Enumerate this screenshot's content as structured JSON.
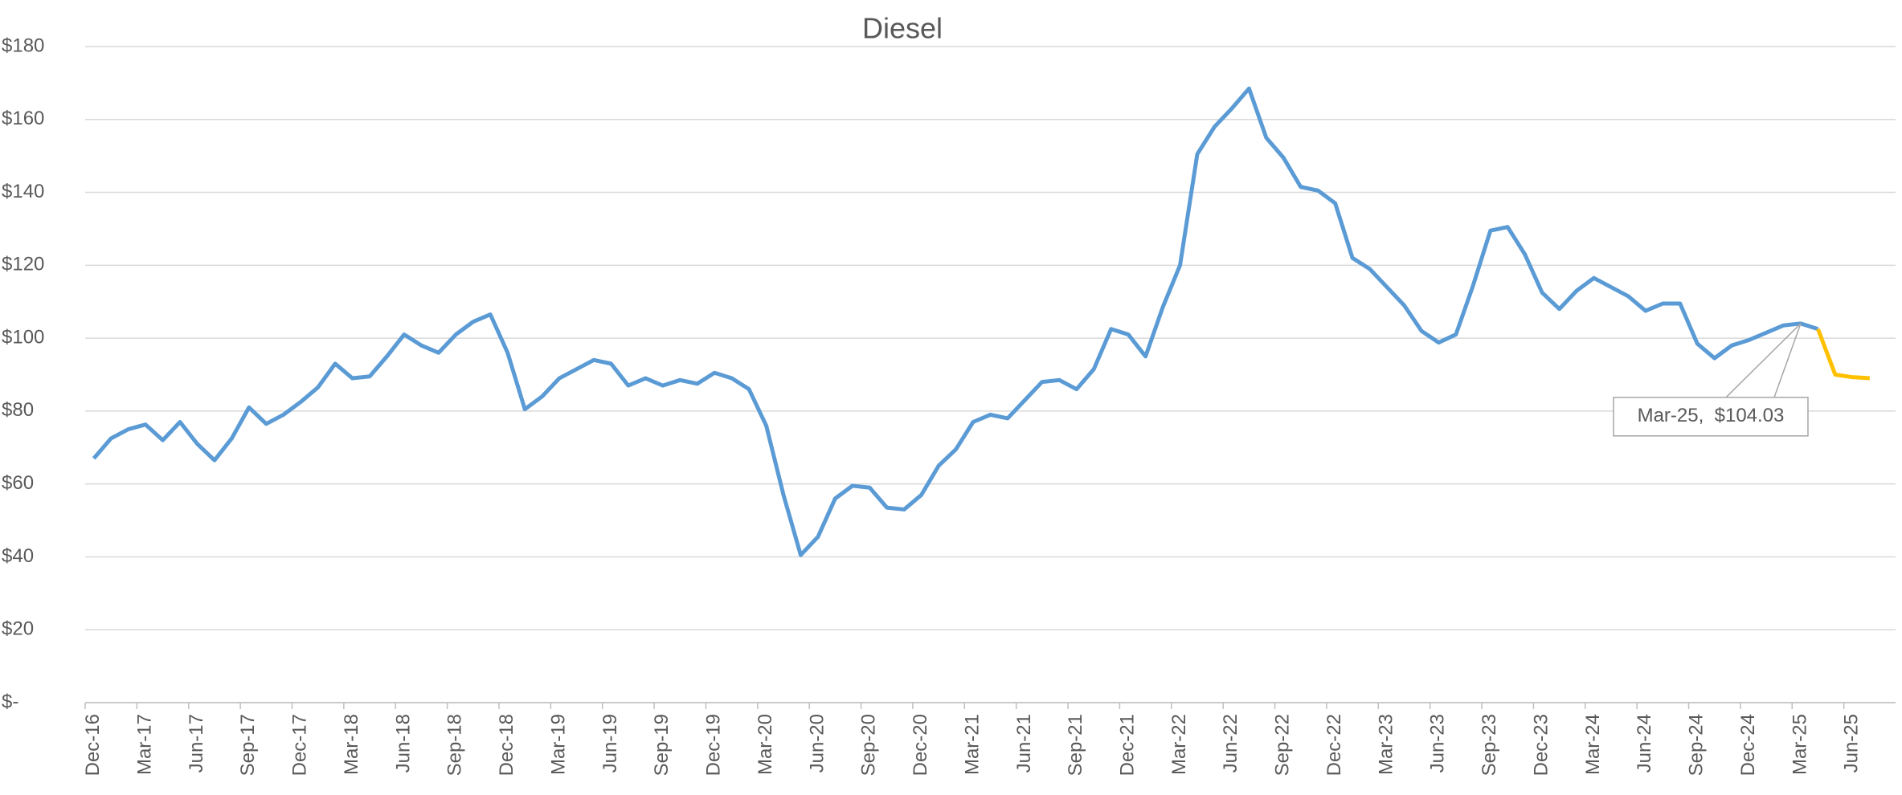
{
  "chart_data": {
    "type": "line",
    "title": "Diesel",
    "categories": [
      "Dec-16",
      null,
      null,
      "Mar-17",
      null,
      null,
      "Jun-17",
      null,
      null,
      "Sep-17",
      null,
      null,
      "Dec-17",
      null,
      null,
      "Mar-18",
      null,
      null,
      "Jun-18",
      null,
      null,
      "Sep-18",
      null,
      null,
      "Dec-18",
      null,
      null,
      "Mar-19",
      null,
      null,
      "Jun-19",
      null,
      null,
      "Sep-19",
      null,
      null,
      "Dec-19",
      null,
      null,
      "Mar-20",
      null,
      null,
      "Jun-20",
      null,
      null,
      "Sep-20",
      null,
      null,
      "Dec-20",
      null,
      null,
      "Mar-21",
      null,
      null,
      "Jun-21",
      null,
      null,
      "Sep-21",
      null,
      null,
      "Dec-21",
      null,
      null,
      "Mar-22",
      null,
      null,
      "Jun-22",
      null,
      null,
      "Sep-22",
      null,
      null,
      "Dec-22",
      null,
      null,
      "Mar-23",
      null,
      null,
      "Jun-23",
      null,
      null,
      "Sep-23",
      null,
      null,
      "Dec-23",
      null,
      null,
      "Mar-24",
      null,
      null,
      "Jun-24",
      null,
      null,
      "Sep-24",
      null,
      null,
      "Dec-24",
      null,
      null,
      "Mar-25",
      null,
      null,
      "Jun-25",
      null,
      null
    ],
    "series": [
      {
        "color": "#5b9bd5",
        "values": [
          67,
          72.5,
          75,
          76.3,
          72,
          77,
          71,
          66.5,
          72.5,
          81,
          76.5,
          79,
          82.5,
          86.5,
          93,
          89,
          89.5,
          95,
          101,
          98,
          96,
          101,
          104.5,
          106.5,
          96,
          80.5,
          84,
          89,
          91.5,
          94,
          93,
          87,
          89,
          87,
          88.5,
          87.5,
          90.5,
          89,
          86,
          76,
          57,
          40.5,
          45.5,
          56,
          59.5,
          59,
          53.5,
          53,
          57,
          65,
          69.5,
          77,
          79,
          78,
          83,
          88,
          88.5,
          86,
          91.5,
          102.5,
          101,
          95,
          108.5,
          120,
          150.5,
          158,
          163,
          168.5,
          155,
          149.5,
          141.5,
          140.5,
          137,
          122,
          119,
          114,
          109,
          102,
          98.8,
          101,
          114.5,
          129.5,
          130.5,
          123,
          112.5,
          108,
          113,
          116.5,
          114,
          111.5,
          107.5,
          109.5,
          109.5,
          98.5,
          94.5,
          98,
          99.5,
          101.5,
          103.5,
          104.03,
          102.5,
          null,
          null,
          null,
          null
        ],
        "value_labels": [
          null,
          null,
          null,
          null,
          null,
          null,
          null,
          null,
          null,
          null,
          null,
          null,
          null,
          null,
          null,
          null,
          null,
          null,
          null,
          null,
          null,
          null,
          null,
          null,
          null,
          null,
          null,
          null,
          null,
          null,
          null,
          null,
          null,
          null,
          null,
          null,
          null,
          null,
          null,
          null,
          null,
          null,
          null,
          null,
          null,
          null,
          null,
          null,
          null,
          null,
          null,
          null,
          null,
          null,
          null,
          null,
          null,
          null,
          null,
          null,
          null,
          null,
          null,
          null,
          null,
          null,
          null,
          null,
          null,
          null,
          null,
          null,
          null,
          null,
          null,
          null,
          null,
          null,
          null,
          null,
          null,
          null,
          null,
          null,
          null,
          null,
          null,
          null,
          null,
          null,
          null,
          null,
          null,
          null,
          null,
          null,
          null,
          null,
          null,
          "Mar-25,  $104.03",
          null,
          null,
          null,
          null,
          null
        ]
      },
      {
        "color": "#ffc000",
        "values": [
          null,
          null,
          null,
          null,
          null,
          null,
          null,
          null,
          null,
          null,
          null,
          null,
          null,
          null,
          null,
          null,
          null,
          null,
          null,
          null,
          null,
          null,
          null,
          null,
          null,
          null,
          null,
          null,
          null,
          null,
          null,
          null,
          null,
          null,
          null,
          null,
          null,
          null,
          null,
          null,
          null,
          null,
          null,
          null,
          null,
          null,
          null,
          null,
          null,
          null,
          null,
          null,
          null,
          null,
          null,
          null,
          null,
          null,
          null,
          null,
          null,
          null,
          null,
          null,
          null,
          null,
          null,
          null,
          null,
          null,
          null,
          null,
          null,
          null,
          null,
          null,
          null,
          null,
          null,
          null,
          null,
          null,
          null,
          null,
          null,
          null,
          null,
          null,
          null,
          null,
          null,
          null,
          null,
          null,
          null,
          null,
          null,
          null,
          null,
          null,
          102.5,
          90,
          89.3,
          89,
          null
        ]
      }
    ],
    "ylim": [
      0,
      180
    ],
    "yticks": [
      {
        "value": 0,
        "label": "$-"
      },
      {
        "value": 20,
        "label": "$20"
      },
      {
        "value": 40,
        "label": "$40"
      },
      {
        "value": 60,
        "label": "$60"
      },
      {
        "value": 80,
        "label": "$80"
      },
      {
        "value": 100,
        "label": "$100"
      },
      {
        "value": 120,
        "label": "$120"
      },
      {
        "value": 140,
        "label": "$140"
      },
      {
        "value": 160,
        "label": "$160"
      },
      {
        "value": 180,
        "label": "$180"
      }
    ],
    "grid": true
  }
}
